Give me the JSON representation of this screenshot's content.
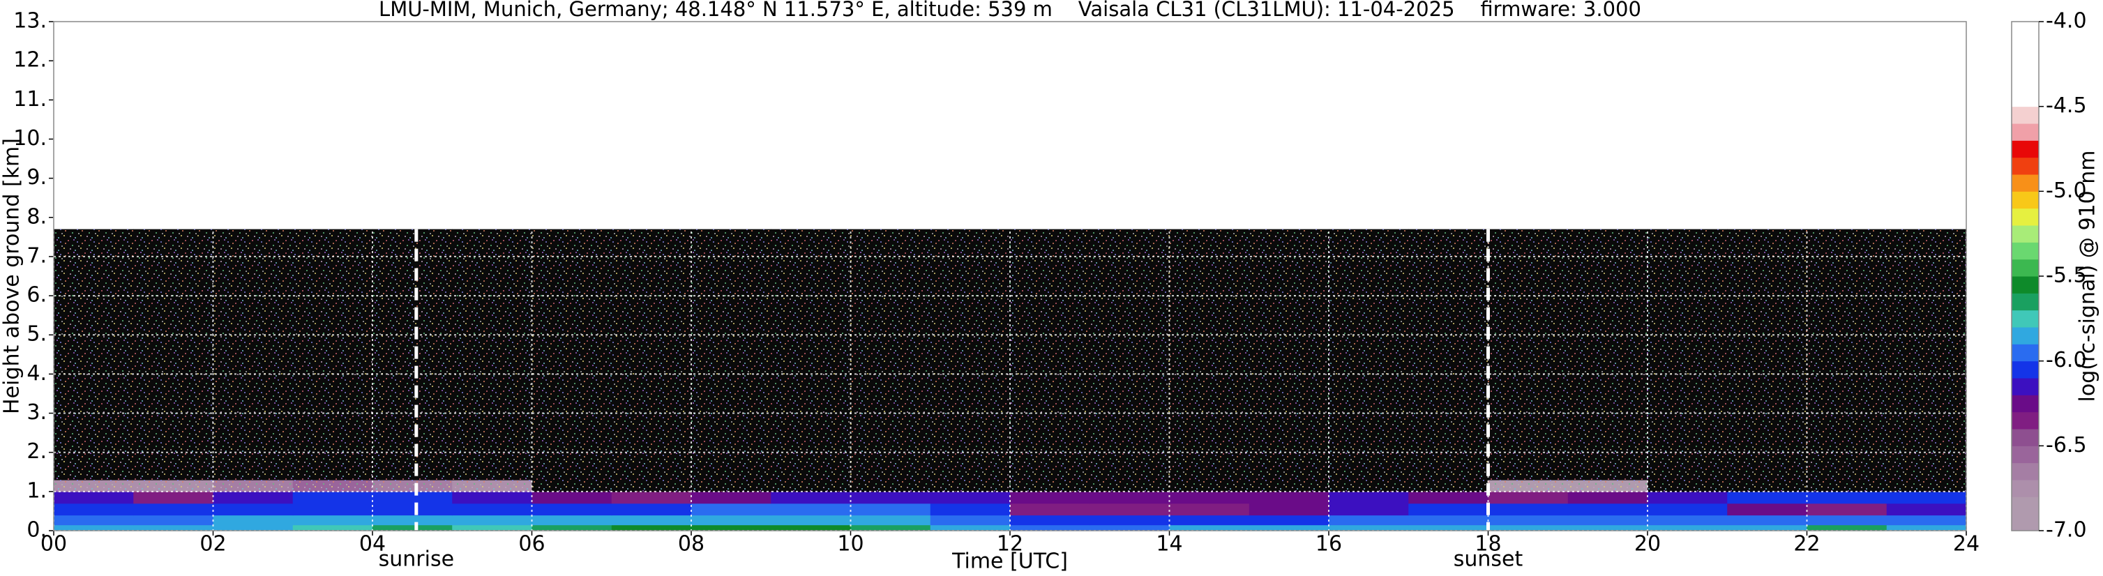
{
  "chart_data": {
    "type": "heatmap",
    "title": "LMU-MIM, Munich, Germany; 48.148° N 11.573° E, altitude: 539 m    Vaisala CL31 (CL31LMU): 11-04-2025    firmware: 3.000",
    "xlabel": "Time [UTC]",
    "ylabel": "Height above ground [km]",
    "colorbar_label": "log(rc-signal) @ 910 nm",
    "xlim": [
      0,
      24
    ],
    "ylim": [
      0,
      13
    ],
    "xticks": [
      {
        "value": 0,
        "label": "00"
      },
      {
        "value": 2,
        "label": "02"
      },
      {
        "value": 4,
        "label": "04"
      },
      {
        "value": 6,
        "label": "06"
      },
      {
        "value": 8,
        "label": "08"
      },
      {
        "value": 10,
        "label": "10"
      },
      {
        "value": 12,
        "label": "12"
      },
      {
        "value": 14,
        "label": "14"
      },
      {
        "value": 16,
        "label": "16"
      },
      {
        "value": 18,
        "label": "18"
      },
      {
        "value": 20,
        "label": "20"
      },
      {
        "value": 22,
        "label": "22"
      },
      {
        "value": 24,
        "label": "24"
      }
    ],
    "yticks": [
      {
        "value": 0,
        "label": "0."
      },
      {
        "value": 1,
        "label": "1."
      },
      {
        "value": 2,
        "label": "2."
      },
      {
        "value": 3,
        "label": "3."
      },
      {
        "value": 4,
        "label": "4."
      },
      {
        "value": 5,
        "label": "5."
      },
      {
        "value": 6,
        "label": "6."
      },
      {
        "value": 7,
        "label": "7."
      },
      {
        "value": 8,
        "label": "8."
      },
      {
        "value": 9,
        "label": "9."
      },
      {
        "value": 10,
        "label": "10."
      },
      {
        "value": 11,
        "label": "11."
      },
      {
        "value": 12,
        "label": "12."
      },
      {
        "value": 13,
        "label": "13."
      }
    ],
    "clim": [
      -7,
      -4
    ],
    "cticks": [
      {
        "value": -4,
        "label": "-4.0"
      },
      -4.5,
      {
        "value": -5,
        "label": "-5.0"
      },
      -5.5,
      {
        "value": -6,
        "label": "-6.0"
      },
      -6.5,
      {
        "value": -7,
        "label": "-7.0"
      }
    ],
    "colors": [
      "#b09aae",
      "#b09aae",
      "#ad8fab",
      "#a57ea4",
      "#9a659b",
      "#8e4f90",
      "#801e82",
      "#6a0c88",
      "#3c10c0",
      "#1434e8",
      "#2a6cf0",
      "#30a8e0",
      "#40c8b8",
      "#1aa060",
      "#0e8a2a",
      "#3cb850",
      "#6ad870",
      "#a8ec78",
      "#e6f040",
      "#f8c818",
      "#f89018",
      "#f04010",
      "#e80808",
      "#f0a0a8",
      "#f4d0d0",
      "#ffffff",
      "#ffffff",
      "#ffffff",
      "#ffffff",
      "#ffffff"
    ],
    "under_color": "#0a0a0a",
    "grid": true,
    "grid_color": "#ffffff",
    "x_edges": [
      0,
      1,
      2,
      3,
      4,
      5,
      6,
      7,
      8,
      9,
      10,
      11,
      12,
      13,
      14,
      15,
      16,
      17,
      18,
      19,
      20,
      21,
      22,
      23,
      24
    ],
    "y_edges": [
      0,
      0.15,
      0.4,
      0.7,
      1.0,
      1.3,
      7.7
    ],
    "z": [
      [
        -5.9,
        -5.9,
        -5.9,
        -5.8,
        -5.7,
        -5.8,
        -5.7,
        -5.6,
        -5.6,
        -5.6,
        -5.7,
        -5.9,
        -6.0,
        -6.0,
        -5.9,
        -5.9,
        -5.9,
        -5.9,
        -5.9,
        -5.9,
        -5.9,
        -5.9,
        -5.7,
        -5.9
      ],
      [
        -6.0,
        -6.0,
        -5.9,
        -5.9,
        -5.9,
        -5.9,
        -5.9,
        -5.9,
        -5.9,
        -5.9,
        -5.9,
        -6.0,
        -6.1,
        -6.1,
        -6.1,
        -6.1,
        -6.0,
        -6.0,
        -6.0,
        -6.0,
        -6.0,
        -6.0,
        -6.0,
        -6.0
      ],
      [
        -6.1,
        -6.1,
        -6.1,
        -6.1,
        -6.1,
        -6.1,
        -6.1,
        -6.1,
        -6.0,
        -6.0,
        -6.0,
        -6.1,
        -6.4,
        -6.4,
        -6.4,
        -6.3,
        -6.2,
        -6.1,
        -6.1,
        -6.1,
        -6.1,
        -6.3,
        -6.4,
        -6.2
      ],
      [
        -6.2,
        -6.4,
        -6.2,
        -6.1,
        -6.1,
        -6.2,
        -6.3,
        -6.4,
        -6.3,
        -6.2,
        -6.2,
        -6.2,
        -6.3,
        -6.3,
        -6.3,
        -6.3,
        -6.2,
        -6.3,
        -6.4,
        -6.3,
        -6.2,
        -6.1,
        -6.1,
        -6.1
      ],
      [
        -6.8,
        -6.8,
        -6.7,
        -6.6,
        -6.7,
        -6.8,
        -7.5,
        -7.5,
        -7.5,
        -7.5,
        -7.5,
        -7.5,
        -7.5,
        -7.5,
        -7.5,
        -7.5,
        -7.5,
        -7.5,
        -6.9,
        -6.9,
        -7.5,
        -7.5,
        -7.5,
        -7.5
      ],
      [
        -7.5,
        -7.5,
        -7.5,
        -7.5,
        -7.5,
        -7.5,
        -7.5,
        -7.5,
        -7.5,
        -7.5,
        -7.5,
        -7.5,
        -7.5,
        -7.5,
        -7.5,
        -7.5,
        -7.5,
        -7.5,
        -7.5,
        -7.5,
        -7.5,
        -7.5,
        -7.5,
        -7.5
      ]
    ],
    "annotations": [
      {
        "text": "sunrise",
        "x": 4.55
      },
      {
        "text": "sunset",
        "x": 18.0
      }
    ]
  }
}
